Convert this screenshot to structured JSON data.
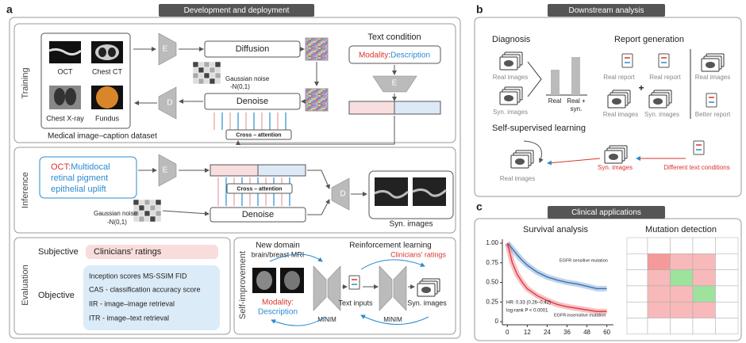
{
  "panel_a": {
    "label": "a",
    "title": "Development and deployment",
    "training": {
      "label": "Training",
      "images": [
        "OCT",
        "Chest CT",
        "Chest X-ray",
        "Fundus"
      ],
      "dataset": "Medical image–caption dataset",
      "image_encoder": "E",
      "image_decoder": "D",
      "diffusion": "Diffusion",
      "denoise": "Denoise",
      "noise": [
        "Gaussian noise",
        "-N(0,1)"
      ],
      "text_condition": "Text condition",
      "modality": "Modality",
      "separator": ":",
      "description": "Description",
      "text_encoder": "E",
      "cross_attention": "Cross – attention"
    },
    "inference": {
      "label": "Inference",
      "prompt_modality": "OCT",
      "separator": ":",
      "prompt_lines": [
        "Multidocal",
        "retinal pigment",
        "epithelial uplift"
      ],
      "encoder": "E",
      "decoder": "D",
      "cross_attention": "Cross – attention",
      "denoise": "Denoise",
      "noise": [
        "Gaussian noise",
        "-N(0,1)"
      ],
      "output": "Syn. images"
    },
    "evaluation": {
      "label": "Evaluation",
      "subjective": "Subjective",
      "subjective_metric": "Clinicians' ratings",
      "objective": "Objective",
      "objective_metrics": [
        "Inception scores  MS-SSIM  FID",
        "CAS - classification accuracy score",
        "IIR - image–image retrieval",
        "ITR - image–text retrieval"
      ]
    },
    "self_improvement": {
      "label": "Self-improvement",
      "new_domain": [
        "New domain",
        "brain/breast MRI"
      ],
      "modality": "Modality:",
      "description": "Description",
      "model": [
        "MINIM",
        "MINIM"
      ],
      "reinforcement": "Reinforcement learning",
      "ratings": "Clinicians' ratings",
      "text_inputs": "Text inputs",
      "syn_images": "Syn. images"
    }
  },
  "panel_b": {
    "label": "b",
    "title": "Downstream analysis",
    "diagnosis": {
      "title": "Diagnosis",
      "inputs": [
        "Real images",
        "Syn. images"
      ],
      "bar_labels": [
        "Real",
        "Real +",
        "syn."
      ]
    },
    "report_generation": {
      "title": "Report generation",
      "items": [
        "Real report",
        "Real report",
        "Real images",
        "Syn. images",
        "Real images",
        "Better report"
      ],
      "plus": "+"
    },
    "self_supervised": {
      "title": "Self-supervised learning",
      "items": [
        "Real images",
        "Syn. images",
        "Different text conditions"
      ]
    }
  },
  "panel_c": {
    "label": "c",
    "title": "Clinical applications",
    "mutation_title": "Mutation detection"
  },
  "chart_data": {
    "type": "line",
    "title": "Survival analysis",
    "x": [
      0,
      3,
      6,
      9,
      12,
      18,
      24,
      30,
      36,
      42,
      48,
      54,
      60
    ],
    "series": [
      {
        "name": "EGFR sensitive mutation",
        "color": "#2f6db3",
        "values": [
          1,
          0.93,
          0.85,
          0.78,
          0.72,
          0.63,
          0.57,
          0.53,
          0.5,
          0.48,
          0.45,
          0.42,
          0.42
        ]
      },
      {
        "name": "EGFR-insensitive mutation",
        "color": "#e0323c",
        "values": [
          1,
          0.75,
          0.6,
          0.5,
          0.42,
          0.33,
          0.27,
          0.22,
          0.19,
          0.17,
          0.15,
          0.13,
          0.13
        ]
      }
    ],
    "xlim": [
      -3,
      64
    ],
    "ylim": [
      -0.04,
      1.05
    ],
    "xticks": [
      0,
      12,
      24,
      36,
      48,
      60
    ],
    "yticks": [
      0,
      {
        "value": 0.25,
        "label": "0.25"
      },
      {
        "value": 0.5,
        "label": "0.50"
      },
      {
        "value": 0.75,
        "label": "0.75"
      },
      {
        "value": 1,
        "label": "1.00"
      }
    ],
    "annotations": [
      "HR: 0.33 (0.26–0.42)",
      "log-rank P < 0.0001"
    ]
  }
}
